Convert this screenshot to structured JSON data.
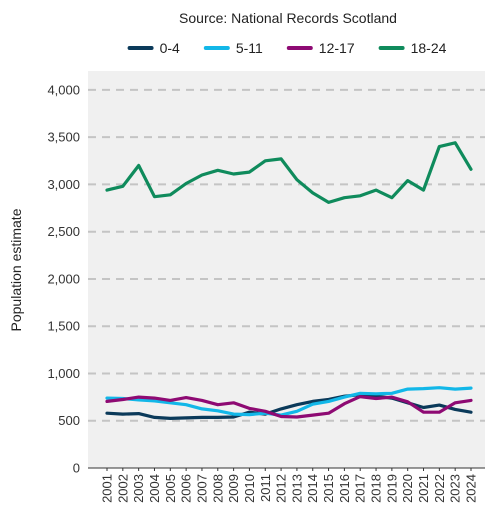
{
  "chart_data": {
    "type": "line",
    "subtitle": "Source: National Records Scotland",
    "xlabel": "",
    "ylabel": "Population estimate",
    "ylim": [
      0,
      4200
    ],
    "yticks": [
      0,
      500,
      1000,
      1500,
      2000,
      2500,
      3000,
      3500,
      4000
    ],
    "ytick_labels": [
      "0",
      "500",
      "1,000",
      "1,500",
      "2,000",
      "2,500",
      "3,000",
      "3,500",
      "4,000"
    ],
    "grid": "horizontal dashed",
    "legend_position": "top",
    "x": [
      "2001",
      "2002",
      "2003",
      "2004",
      "2005",
      "2006",
      "2007",
      "2008",
      "2009",
      "2010",
      "2011",
      "2012",
      "2013",
      "2014",
      "2015",
      "2016",
      "2017",
      "2018",
      "2019",
      "2020",
      "2021",
      "2022",
      "2023",
      "2024"
    ],
    "series": [
      {
        "name": "0-4",
        "color": "#0b3a5a",
        "values": [
          580,
          570,
          575,
          535,
          525,
          530,
          535,
          535,
          540,
          590,
          570,
          625,
          670,
          705,
          725,
          760,
          775,
          760,
          740,
          690,
          640,
          665,
          620,
          590
        ]
      },
      {
        "name": "5-11",
        "color": "#12b7e8",
        "values": [
          740,
          735,
          720,
          710,
          690,
          670,
          625,
          605,
          570,
          565,
          580,
          560,
          600,
          675,
          705,
          750,
          790,
          785,
          790,
          835,
          840,
          850,
          835,
          845
        ]
      },
      {
        "name": "12-17",
        "color": "#8e0a73",
        "values": [
          705,
          725,
          750,
          740,
          715,
          745,
          715,
          670,
          690,
          630,
          600,
          545,
          540,
          560,
          580,
          680,
          755,
          735,
          750,
          700,
          590,
          590,
          690,
          715
        ]
      },
      {
        "name": "18-24",
        "color": "#0f8b5c",
        "values": [
          2940,
          2980,
          3200,
          2870,
          2890,
          3010,
          3100,
          3150,
          3110,
          3130,
          3250,
          3270,
          3050,
          2910,
          2810,
          2860,
          2880,
          2940,
          2860,
          3040,
          2940,
          3400,
          3440,
          3160
        ]
      }
    ]
  }
}
